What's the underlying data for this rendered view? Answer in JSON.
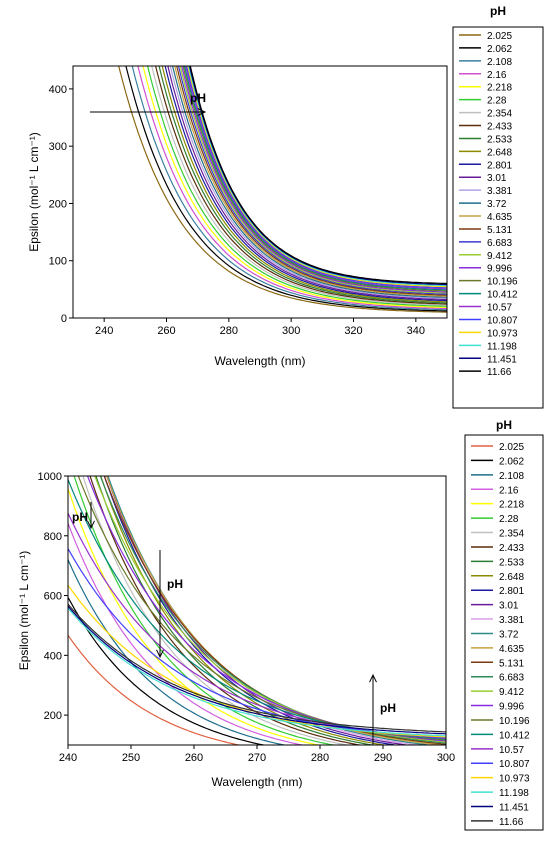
{
  "chart_data": [
    {
      "type": "line",
      "xlabel": "Wavelength (nm)",
      "ylabel": "Epsilon (mol⁻¹ L cm⁻¹)",
      "xlim": [
        230,
        350
      ],
      "ylim": [
        0,
        440
      ],
      "xticks": [
        240,
        260,
        280,
        300,
        320,
        340
      ],
      "yticks": [
        0,
        100,
        200,
        300,
        400
      ],
      "grid": false,
      "legend": {
        "placement": "right",
        "title": "pH"
      },
      "annotations": [
        {
          "text": "pH",
          "arrow": "pointing right, increasing pH"
        }
      ],
      "series": [
        {
          "name": "2.025",
          "color": "#8B6914"
        },
        {
          "name": "2.062",
          "color": "#000000"
        },
        {
          "name": "2.108",
          "color": "#3a7fa0"
        },
        {
          "name": "2.16",
          "color": "#d050d0"
        },
        {
          "name": "2.218",
          "color": "#ffff00"
        },
        {
          "name": "2.28",
          "color": "#33cc33"
        },
        {
          "name": "2.354",
          "color": "#c0c0c0"
        },
        {
          "name": "2.433",
          "color": "#5a2d0c"
        },
        {
          "name": "2.533",
          "color": "#2e7d32"
        },
        {
          "name": "2.648",
          "color": "#8b8b00"
        },
        {
          "name": "2.801",
          "color": "#1a1aa0"
        },
        {
          "name": "3.01",
          "color": "#6a1b9a"
        },
        {
          "name": "3.381",
          "color": "#b0a0e0"
        },
        {
          "name": "3.72",
          "color": "#1e6e8c"
        },
        {
          "name": "4.635",
          "color": "#c8a040"
        },
        {
          "name": "5.131",
          "color": "#7a3a10"
        },
        {
          "name": "6.683",
          "color": "#3b3bd0"
        },
        {
          "name": "9.412",
          "color": "#9acd32"
        },
        {
          "name": "9.996",
          "color": "#8a2be2"
        },
        {
          "name": "10.196",
          "color": "#6b7a2a"
        },
        {
          "name": "10.412",
          "color": "#00897b"
        },
        {
          "name": "10.57",
          "color": "#9932cc"
        },
        {
          "name": "10.807",
          "color": "#4040ff"
        },
        {
          "name": "10.973",
          "color": "#ffd700"
        },
        {
          "name": "11.198",
          "color": "#40e0d0"
        },
        {
          "name": "11.451",
          "color": "#00007f"
        },
        {
          "name": "11.66",
          "color": "#000000"
        }
      ]
    },
    {
      "type": "line",
      "xlabel": "Wavelength (nm)",
      "ylabel": "Epsilon (mol⁻¹ L cm⁻¹)",
      "xlim": [
        240,
        300
      ],
      "ylim": [
        100,
        1000
      ],
      "xticks": [
        240,
        250,
        260,
        270,
        280,
        290,
        300
      ],
      "yticks": [
        200,
        400,
        600,
        800,
        1000
      ],
      "grid": false,
      "legend": {
        "placement": "right",
        "title": "pH"
      },
      "annotations": [
        {
          "text": "pH",
          "arrow": "pointing down near 243 nm"
        },
        {
          "text": "pH",
          "arrow": "pointing down near 255 nm"
        },
        {
          "text": "pH",
          "arrow": "pointing up near 289 nm"
        }
      ],
      "series": [
        {
          "name": "2.025",
          "color": "#e06040"
        },
        {
          "name": "2.062",
          "color": "#000000"
        },
        {
          "name": "2.108",
          "color": "#1e6e8c"
        },
        {
          "name": "2.16",
          "color": "#d060e0"
        },
        {
          "name": "2.218",
          "color": "#ffff00"
        },
        {
          "name": "2.28",
          "color": "#33cc33"
        },
        {
          "name": "2.354",
          "color": "#c0c0c0"
        },
        {
          "name": "2.433",
          "color": "#5a2d0c"
        },
        {
          "name": "2.533",
          "color": "#2e7d32"
        },
        {
          "name": "2.648",
          "color": "#8b8b00"
        },
        {
          "name": "2.801",
          "color": "#1a1aa0"
        },
        {
          "name": "3.01",
          "color": "#6a1b9a"
        },
        {
          "name": "3.381",
          "color": "#d8a0e8"
        },
        {
          "name": "3.72",
          "color": "#2a8a8a"
        },
        {
          "name": "4.635",
          "color": "#c8a040"
        },
        {
          "name": "5.131",
          "color": "#7a3a10"
        },
        {
          "name": "6.683",
          "color": "#2e8b57"
        },
        {
          "name": "9.412",
          "color": "#9acd32"
        },
        {
          "name": "9.996",
          "color": "#8a2be2"
        },
        {
          "name": "10.196",
          "color": "#6b7a2a"
        },
        {
          "name": "10.412",
          "color": "#00897b"
        },
        {
          "name": "10.57",
          "color": "#9932cc"
        },
        {
          "name": "10.807",
          "color": "#4040ff"
        },
        {
          "name": "10.973",
          "color": "#ffd700"
        },
        {
          "name": "11.198",
          "color": "#40e0d0"
        },
        {
          "name": "11.451",
          "color": "#00007f"
        },
        {
          "name": "11.66",
          "color": "#333333"
        }
      ]
    }
  ]
}
